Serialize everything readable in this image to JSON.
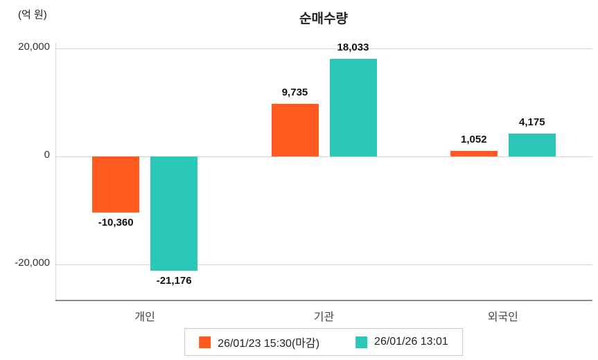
{
  "chart_data": {
    "type": "bar",
    "title": "순매수량",
    "ylabel": "(억 원)",
    "xlabel": "",
    "categories": [
      "개인",
      "기관",
      "외국인"
    ],
    "series": [
      {
        "name": "26/01/23 15:30(마감)",
        "color": "#ff5a1f",
        "values": [
          -10360,
          9735,
          1052
        ],
        "labels": [
          "-10,360",
          "9,735",
          "1,052"
        ]
      },
      {
        "name": "26/01/26 13:01",
        "color": "#2bc7b9",
        "values": [
          -21176,
          18033,
          4175
        ],
        "labels": [
          "-21,176",
          "18,033",
          "4,175"
        ]
      }
    ],
    "y_ticks": [
      "20,000",
      "0",
      "-20,000"
    ],
    "y_tick_values": [
      20000,
      0,
      -20000
    ],
    "ylim": [
      -24000,
      21000
    ],
    "grid": true,
    "legend_position": "bottom",
    "colors": {
      "gridline": "#d6d6d6",
      "axis": "#8a8a8a",
      "tick_text": "#333333",
      "category_text": "#444444",
      "value_text": "#111111"
    }
  }
}
